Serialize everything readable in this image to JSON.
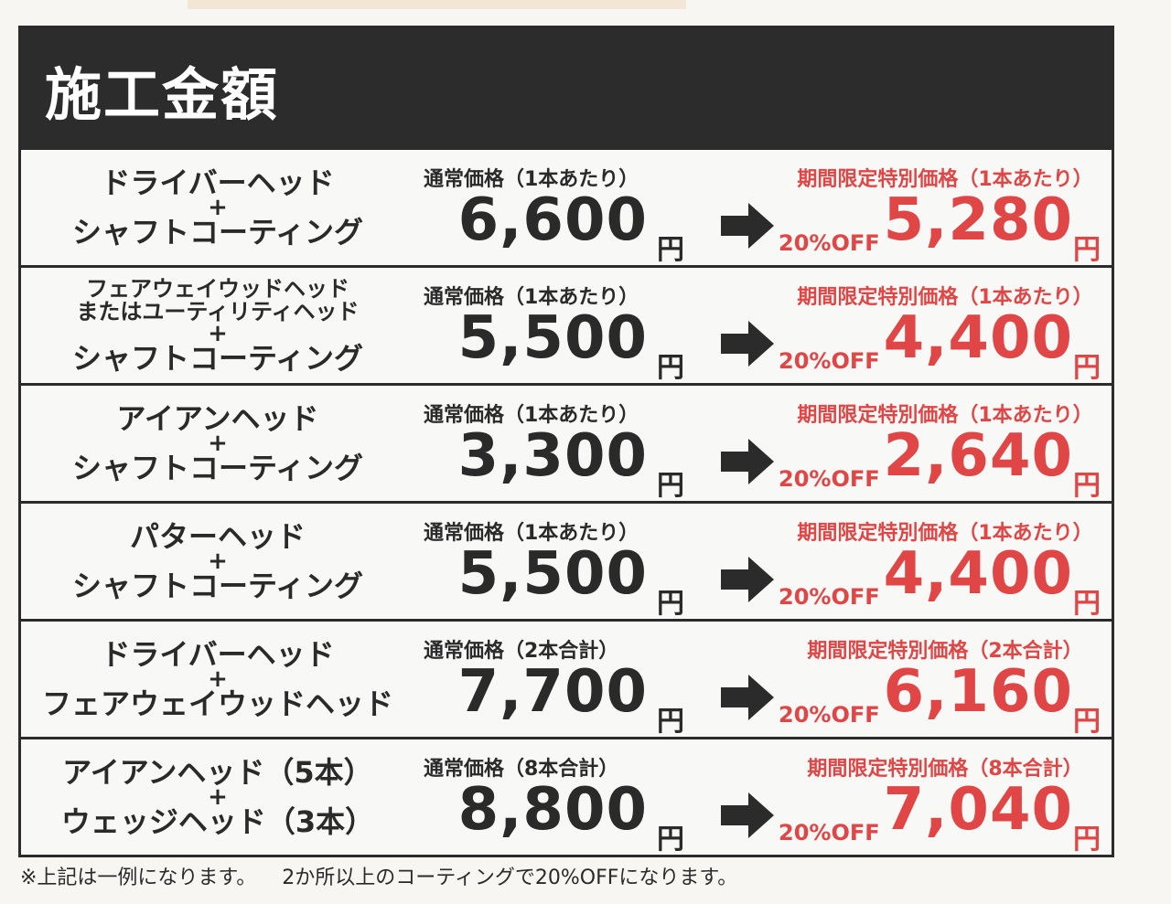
{
  "title": "施工金額",
  "yen": "円",
  "off_label": "20%OFF",
  "accent_color": "#e04646",
  "rows": [
    {
      "lines": [
        "ドライバーヘッド",
        "+",
        "シャフトコーティング"
      ],
      "normal_label": "通常価格（1本あたり）",
      "normal_price": "6,600",
      "special_label": "期間限定特別価格（1本あたり）",
      "special_price": "5,280"
    },
    {
      "lines": [
        "フェアウェイウッドヘッド",
        "またはユーティリティヘッド",
        "+",
        "シャフトコーティング"
      ],
      "normal_label": "通常価格（1本あたり）",
      "normal_price": "5,500",
      "special_label": "期間限定特別価格（1本あたり）",
      "special_price": "4,400"
    },
    {
      "lines": [
        "アイアンヘッド",
        "+",
        "シャフトコーティング"
      ],
      "normal_label": "通常価格（1本あたり）",
      "normal_price": "3,300",
      "special_label": "期間限定特別価格（1本あたり）",
      "special_price": "2,640"
    },
    {
      "lines": [
        "パターヘッド",
        "+",
        "シャフトコーティング"
      ],
      "normal_label": "通常価格（1本あたり）",
      "normal_price": "5,500",
      "special_label": "期間限定特別価格（1本あたり）",
      "special_price": "4,400"
    },
    {
      "lines": [
        "ドライバーヘッド",
        "+",
        "フェアウェイウッドヘッド"
      ],
      "normal_label": "通常価格（2本合計）",
      "normal_price": "7,700",
      "special_label": "期間限定特別価格（2本合計）",
      "special_price": "6,160"
    },
    {
      "lines": [
        "アイアンヘッド（5本）",
        "+",
        "ウェッジヘッド（3本）"
      ],
      "normal_label": "通常価格（8本合計）",
      "normal_price": "8,800",
      "special_label": "期間限定特別価格（8本合計）",
      "special_price": "7,040"
    }
  ],
  "footer": "※上記は一例になります。    2か所以上のコーティングで20%OFFになります。"
}
